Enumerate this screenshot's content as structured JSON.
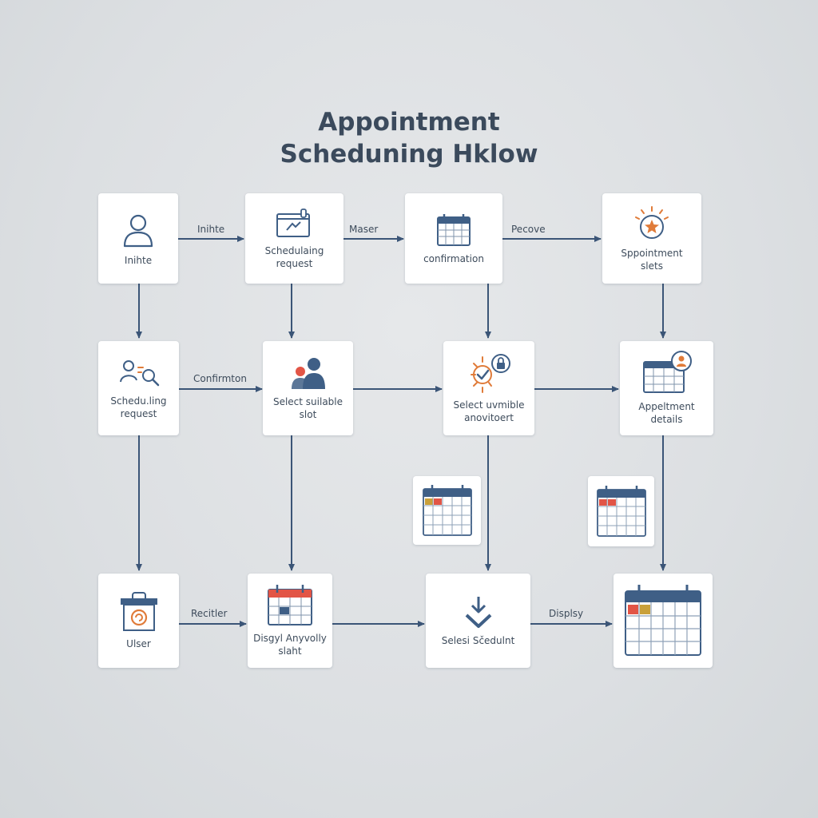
{
  "title": {
    "line1": "Appointment",
    "line2": "Scheduning Hklow"
  },
  "colors": {
    "background": "#dfe2e5",
    "arrow": "#3b5577",
    "accent_blue": "#3f5f86",
    "accent_orange": "#e07b39",
    "accent_red": "#e25546",
    "accent_olive": "#c9a03a"
  },
  "nodes": {
    "r1c1": {
      "label": "Inihte",
      "icon": "user-icon"
    },
    "r1c2": {
      "label": "Schedulaing\nrequest",
      "icon": "scheduling-card-icon"
    },
    "r1c3": {
      "label": "confirmation",
      "icon": "calendar-icon"
    },
    "r1c4": {
      "label": "Sppointment\nslets",
      "icon": "star-badge-icon"
    },
    "r2c1": {
      "label": "Schedu.ling\nrequest",
      "icon": "search-user-icon"
    },
    "r2c2": {
      "label": "Select suilable\nslot",
      "icon": "people-icon"
    },
    "r2c3": {
      "label": "Select uvmible\nanovitoert",
      "icon": "check-lock-icon"
    },
    "r2c4": {
      "label": "Appeltment\ndetails",
      "icon": "calendar-user-icon"
    },
    "mid1": {
      "label": "",
      "icon": "calendar-grid-icon"
    },
    "mid2": {
      "label": "",
      "icon": "calendar-grid-icon"
    },
    "r3c1": {
      "label": "Ulser",
      "icon": "bag-icon"
    },
    "r3c2": {
      "label": "Disgyl Anyvolly\nslaht",
      "icon": "red-calendar-icon"
    },
    "r3c3": {
      "label": "Selesi Sčedulnt",
      "icon": "download-check-icon"
    },
    "r3c4": {
      "label": "",
      "icon": "large-calendar-icon"
    }
  },
  "edge_labels": {
    "e1": "Inihte",
    "e2": "Maser",
    "e3": "Pecove",
    "e4": "Confirmton",
    "e5": "Recitler",
    "e6": "Displsy"
  }
}
